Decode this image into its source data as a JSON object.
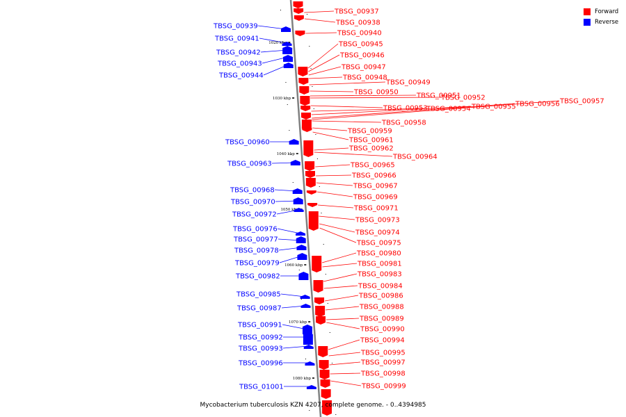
{
  "caption": "Mycobacterium tuberculosis KZN 4207, complete genome. - 0..4394985",
  "legend": [
    {
      "label": "Forward",
      "color": "#ff0000"
    },
    {
      "label": "Reverse",
      "color": "#0000ff"
    }
  ],
  "colors": {
    "forward": "#ff0000",
    "reverse": "#0000ff",
    "axis": "#808080"
  },
  "ticks": [
    {
      "label": "1020 kbp"
    },
    {
      "label": "1030 kbp"
    },
    {
      "label": "1040 kbp"
    },
    {
      "label": "1050 kbp"
    },
    {
      "label": "1060 kbp"
    },
    {
      "label": "1070 kbp"
    },
    {
      "label": "1080 kbp"
    }
  ],
  "forward_genes": [
    {
      "label": "TBSG_00937"
    },
    {
      "label": "TBSG_00938"
    },
    {
      "label": "TBSG_00940"
    },
    {
      "label": "TBSG_00945"
    },
    {
      "label": "TBSG_00946"
    },
    {
      "label": "TBSG_00947"
    },
    {
      "label": "TBSG_00948"
    },
    {
      "label": "TBSG_00949"
    },
    {
      "label": "TBSG_00950"
    },
    {
      "label": "TBSG_00951"
    },
    {
      "label": "TBSG_00952"
    },
    {
      "label": "TBSG_00953"
    },
    {
      "label": "TBSG_00954"
    },
    {
      "label": "TBSG_00955"
    },
    {
      "label": "TBSG_00956"
    },
    {
      "label": "TBSG_00957"
    },
    {
      "label": "TBSG_00958"
    },
    {
      "label": "TBSG_00959"
    },
    {
      "label": "TBSG_00961"
    },
    {
      "label": "TBSG_00962"
    },
    {
      "label": "TBSG_00964"
    },
    {
      "label": "TBSG_00965"
    },
    {
      "label": "TBSG_00966"
    },
    {
      "label": "TBSG_00967"
    },
    {
      "label": "TBSG_00969"
    },
    {
      "label": "TBSG_00971"
    },
    {
      "label": "TBSG_00973"
    },
    {
      "label": "TBSG_00974"
    },
    {
      "label": "TBSG_00975"
    },
    {
      "label": "TBSG_00980"
    },
    {
      "label": "TBSG_00981"
    },
    {
      "label": "TBSG_00983"
    },
    {
      "label": "TBSG_00984"
    },
    {
      "label": "TBSG_00986"
    },
    {
      "label": "TBSG_00988"
    },
    {
      "label": "TBSG_00989"
    },
    {
      "label": "TBSG_00990"
    },
    {
      "label": "TBSG_00994"
    },
    {
      "label": "TBSG_00995"
    },
    {
      "label": "TBSG_00997"
    },
    {
      "label": "TBSG_00998"
    },
    {
      "label": "TBSG_00999"
    }
  ],
  "reverse_genes": [
    {
      "label": "TBSG_00939"
    },
    {
      "label": "TBSG_00941"
    },
    {
      "label": "TBSG_00942"
    },
    {
      "label": "TBSG_00943"
    },
    {
      "label": "TBSG_00944"
    },
    {
      "label": "TBSG_00960"
    },
    {
      "label": "TBSG_00963"
    },
    {
      "label": "TBSG_00968"
    },
    {
      "label": "TBSG_00970"
    },
    {
      "label": "TBSG_00972"
    },
    {
      "label": "TBSG_00976"
    },
    {
      "label": "TBSG_00977"
    },
    {
      "label": "TBSG_00978"
    },
    {
      "label": "TBSG_00979"
    },
    {
      "label": "TBSG_00982"
    },
    {
      "label": "TBSG_00985"
    },
    {
      "label": "TBSG_00987"
    },
    {
      "label": "TBSG_00991"
    },
    {
      "label": "TBSG_00992"
    },
    {
      "label": "TBSG_00993"
    },
    {
      "label": "TBSG_00996"
    },
    {
      "label": "TBSG_01001"
    }
  ]
}
